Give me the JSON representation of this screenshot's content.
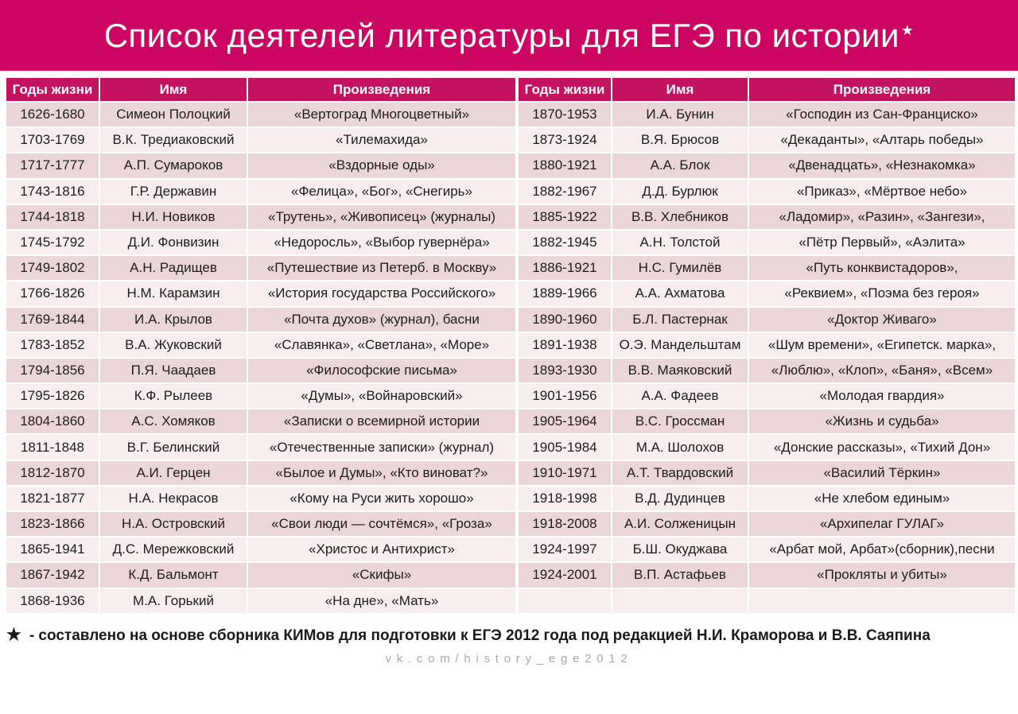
{
  "title": {
    "text": "Список деятелей литературы для ЕГЭ по истории",
    "star": "★"
  },
  "table_headers": [
    "Годы жизни",
    "Имя",
    "Произведения"
  ],
  "left_table": {
    "rows": [
      [
        "1626-1680",
        "Симеон Полоцкий",
        "«Вертоград Многоцветный»"
      ],
      [
        "1703-1769",
        "В.К. Тредиаковский",
        "«Тилемахида»"
      ],
      [
        "1717-1777",
        "А.П. Сумароков",
        "«Вздорные оды»"
      ],
      [
        "1743-1816",
        "Г.Р. Державин",
        "«Фелица», «Бог», «Снегирь»"
      ],
      [
        "1744-1818",
        "Н.И. Новиков",
        "«Трутень», «Живописец» (журналы)"
      ],
      [
        "1745-1792",
        "Д.И. Фонвизин",
        "«Недоросль», «Выбор гувернёра»"
      ],
      [
        "1749-1802",
        "А.Н. Радищев",
        "«Путешествие из Петерб. в Москву»"
      ],
      [
        "1766-1826",
        "Н.М. Карамзин",
        "«История государства Российского»"
      ],
      [
        "1769-1844",
        "И.А. Крылов",
        "«Почта духов» (журнал), басни"
      ],
      [
        "1783-1852",
        "В.А. Жуковский",
        "«Славянка», «Светлана», «Море»"
      ],
      [
        "1794-1856",
        "П.Я. Чаадаев",
        "«Философские письма»"
      ],
      [
        "1795-1826",
        "К.Ф. Рылеев",
        "«Думы», «Войнаровский»"
      ],
      [
        "1804-1860",
        "А.С. Хомяков",
        "«Записки о всемирной истории"
      ],
      [
        "1811-1848",
        "В.Г. Белинский",
        "«Отечественные записки» (журнал)"
      ],
      [
        "1812-1870",
        "А.И. Герцен",
        "«Былое и Думы», «Кто виноват?»"
      ],
      [
        "1821-1877",
        "Н.А. Некрасов",
        "«Кому на Руси жить хорошо»"
      ],
      [
        "1823-1866",
        "Н.А. Островский",
        "«Свои люди — сочтёмся», «Гроза»"
      ],
      [
        "1865-1941",
        "Д.С. Мережковский",
        "«Христос и Антихрист»"
      ],
      [
        "1867-1942",
        "К.Д. Бальмонт",
        "«Скифы»"
      ],
      [
        "1868-1936",
        "М.А. Горький",
        "«На дне», «Мать»"
      ]
    ]
  },
  "right_table": {
    "rows": [
      [
        "1870-1953",
        "И.А. Бунин",
        "«Господин из Сан-Франциско»"
      ],
      [
        "1873-1924",
        "В.Я. Брюсов",
        "«Декаданты», «Алтарь победы»"
      ],
      [
        "1880-1921",
        "А.А. Блок",
        "«Двенадцать», «Незнакомка»"
      ],
      [
        "1882-1967",
        "Д.Д. Бурлюк",
        "«Приказ»,  «Мёртвое небо»"
      ],
      [
        "1885-1922",
        "В.В. Хлебников",
        "«Ладомир», «Разин», «Зангези»,"
      ],
      [
        "1882-1945",
        "А.Н. Толстой",
        "«Пётр Первый», «Аэлита»"
      ],
      [
        "1886-1921",
        "Н.С. Гумилёв",
        "«Путь конквистадоров»,"
      ],
      [
        "1889-1966",
        "А.А. Ахматова",
        "«Реквием», «Поэма без героя»"
      ],
      [
        "1890-1960",
        "Б.Л. Пастернак",
        "«Доктор Живаго»"
      ],
      [
        "1891-1938",
        "О.Э. Мандельштам",
        "«Шум времени», «Египетск. марка»,"
      ],
      [
        "1893-1930",
        "В.В. Маяковский",
        "«Люблю», «Клоп», «Баня», «Всем»"
      ],
      [
        "1901-1956",
        "А.А. Фадеев",
        "«Молодая гвардия»"
      ],
      [
        "1905-1964",
        "В.С. Гроссман",
        "«Жизнь и судьба»"
      ],
      [
        "1905-1984",
        "М.А. Шолохов",
        "«Донские рассказы», «Тихий Дон»"
      ],
      [
        "1910-1971",
        "А.Т. Твардовский",
        "«Василий Тёркин»"
      ],
      [
        "1918-1998",
        "В.Д. Дудинцев",
        "«Не хлебом единым»"
      ],
      [
        "1918-2008",
        "А.И. Солженицын",
        "«Архипелаг ГУЛАГ»"
      ],
      [
        "1924-1997",
        "Б.Ш. Окуджава",
        "«Арбат мой, Арбат»(сборник),песни"
      ],
      [
        "1924-2001",
        "В.П. Астафьев",
        "«Прокляты и убиты»"
      ],
      [
        "",
        "",
        ""
      ]
    ]
  },
  "footer": {
    "star": "★",
    "note": "- составлено на основе сборника КИМов для подготовки к ЕГЭ 2012 года под редакцией Н.И. Краморова и В.В. Саяпина",
    "link": "vk.com/history_ege2012"
  },
  "colors": {
    "banner": "#CC0562",
    "table_header": "#C3135F",
    "row_odd": "#EAD6D7",
    "row_even": "#F7EDED",
    "cell_text": "#1D1D1D",
    "link_gray": "#A9A9A9"
  }
}
